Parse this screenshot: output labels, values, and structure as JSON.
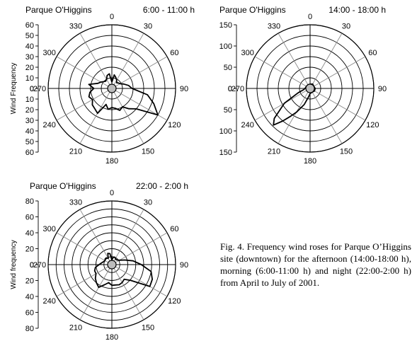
{
  "chart_data": [
    {
      "type": "polar-line",
      "site": "Parque O'Higgins",
      "period": "6:00 - 11:00 h",
      "ylabel": "Wind Frequency",
      "rmax": 60,
      "ring_step": 10,
      "ticks_top": [
        "60",
        "50",
        "40",
        "30",
        "20",
        "10",
        "0"
      ],
      "ticks_bottom": [
        "0",
        "10",
        "20",
        "30",
        "40",
        "50",
        "60"
      ],
      "angle_labels": [
        "0",
        "30",
        "60",
        "90",
        "120",
        "150",
        "180",
        "210",
        "240",
        "270",
        "300",
        "330"
      ],
      "series": [
        {
          "angles": [
            0,
            10,
            20,
            30,
            40,
            50,
            60,
            70,
            80,
            90,
            100,
            110,
            120,
            130,
            140,
            150,
            160,
            170,
            180,
            190,
            200,
            210,
            220,
            230,
            240,
            250,
            260,
            270,
            280,
            290,
            300,
            310,
            320,
            330,
            340,
            350
          ],
          "values": [
            6,
            13,
            11,
            9,
            7,
            8,
            9,
            12,
            16,
            19,
            34,
            42,
            50,
            30,
            25,
            20,
            22,
            19,
            18,
            20,
            16,
            27,
            25,
            24,
            21,
            23,
            21,
            17,
            22,
            14,
            12,
            10,
            9,
            10,
            13,
            14
          ]
        }
      ]
    },
    {
      "type": "polar-line",
      "site": "Parque O'Higgins",
      "period": "14:00 - 18:00 h",
      "ylabel": "",
      "rmax": 150,
      "ring_step": 25,
      "ticks_top": [
        "150",
        "100",
        "50",
        "0"
      ],
      "ticks_bottom": [
        "0",
        "50",
        "100",
        "150"
      ],
      "angle_labels": [
        "0",
        "30",
        "60",
        "90",
        "120",
        "150",
        "180",
        "210",
        "240",
        "270",
        "300",
        "330"
      ],
      "series": [
        {
          "angles": [
            0,
            30,
            60,
            90,
            120,
            150,
            180,
            190,
            200,
            210,
            215,
            220,
            225,
            230,
            240,
            250,
            260,
            270,
            300,
            330
          ],
          "values": [
            10,
            12,
            10,
            12,
            12,
            10,
            12,
            20,
            40,
            65,
            80,
            100,
            122,
            110,
            70,
            30,
            15,
            12,
            10,
            10
          ]
        }
      ]
    },
    {
      "type": "polar-line",
      "site": "Parque O'Higgins",
      "period": "22:00 - 2:00 h",
      "ylabel": "Wind frequency",
      "rmax": 80,
      "ring_step": 10,
      "ticks_top": [
        "80",
        "60",
        "40",
        "20",
        "0"
      ],
      "ticks_bottom": [
        "0",
        "20",
        "40",
        "60",
        "80"
      ],
      "angle_labels": [
        "0",
        "30",
        "60",
        "90",
        "120",
        "150",
        "180",
        "210",
        "240",
        "270",
        "300",
        "330"
      ],
      "series": [
        {
          "angles": [
            0,
            10,
            20,
            30,
            40,
            50,
            60,
            70,
            80,
            90,
            100,
            110,
            120,
            130,
            140,
            150,
            160,
            170,
            180,
            190,
            200,
            210,
            220,
            230,
            240,
            250,
            260,
            270,
            280,
            290,
            300,
            310,
            320,
            330,
            340,
            350
          ],
          "values": [
            6,
            9,
            10,
            9,
            8,
            9,
            11,
            17,
            27,
            37,
            50,
            54,
            55,
            31,
            24,
            26,
            27,
            26,
            26,
            23,
            27,
            33,
            30,
            27,
            23,
            23,
            21,
            16,
            13,
            11,
            10,
            11,
            11,
            9,
            15,
            14
          ]
        }
      ]
    }
  ],
  "caption": "Fig. 4. Frequency wind roses for Parque O’Higgins site (downtown) for the afternoon (14:00-18:00 h), morning (6:00-11:00 h) and night (22:00-2:00 h) from April to July of 2001."
}
